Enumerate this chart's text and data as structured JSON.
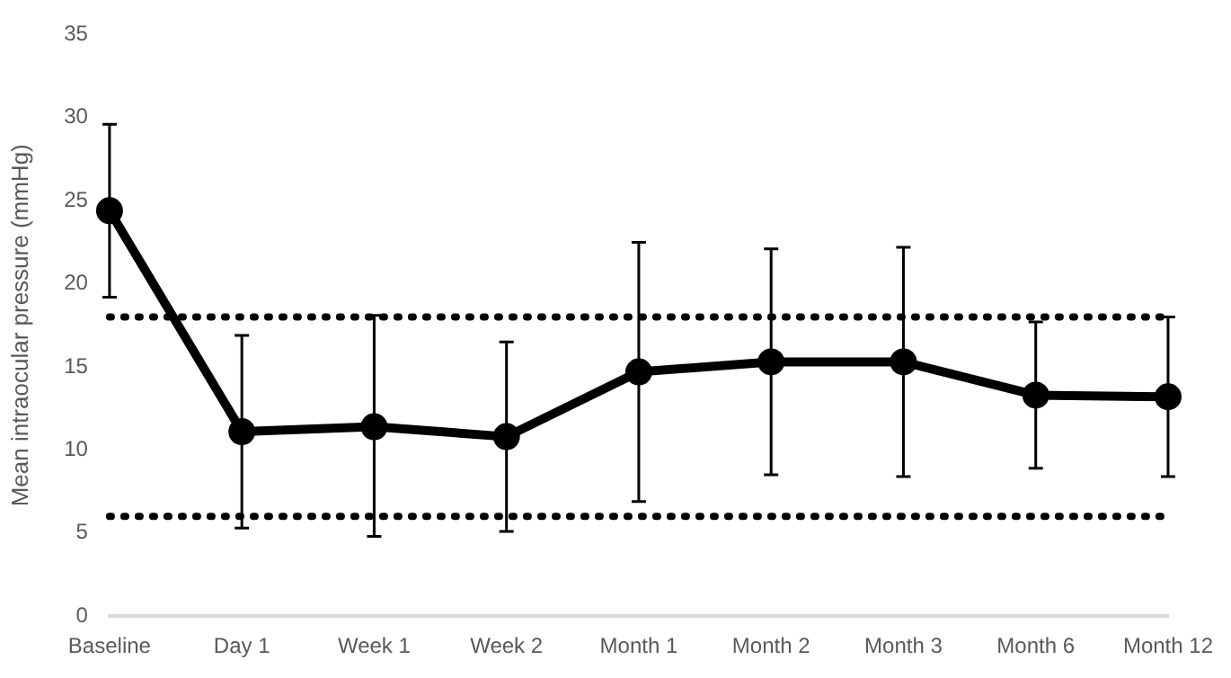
{
  "chart_data": {
    "type": "line",
    "ylabel": "Mean intraocular pressure (mmHg)",
    "categories": [
      "Baseline",
      "Day 1",
      "Week 1",
      "Week 2",
      "Month 1",
      "Month 2",
      "Month 3",
      "Month 6",
      "Month 12"
    ],
    "series": [
      {
        "color": "#000000",
        "values": [
          24.4,
          11.1,
          11.4,
          10.8,
          14.7,
          15.3,
          15.3,
          13.3,
          13.2
        ],
        "errors": [
          [
            19.2,
            29.6
          ],
          [
            5.3,
            16.9
          ],
          [
            4.8,
            18.1
          ],
          [
            5.1,
            16.5
          ],
          [
            6.9,
            22.5
          ],
          [
            8.5,
            22.1
          ],
          [
            8.4,
            22.2
          ],
          [
            8.9,
            17.7
          ],
          [
            8.4,
            18.0
          ]
        ]
      }
    ],
    "ylim": [
      0,
      35
    ],
    "yticks": [
      0,
      5,
      10,
      15,
      20,
      25,
      30,
      35
    ],
    "grid": false,
    "legend": false,
    "marker": "circle",
    "line_style": "solid",
    "ref_lines": [
      {
        "axis": "y",
        "value": 18,
        "color": "#000000",
        "line_style": "dotted"
      },
      {
        "axis": "y",
        "value": 6,
        "color": "#000000",
        "line_style": "dotted"
      }
    ]
  }
}
